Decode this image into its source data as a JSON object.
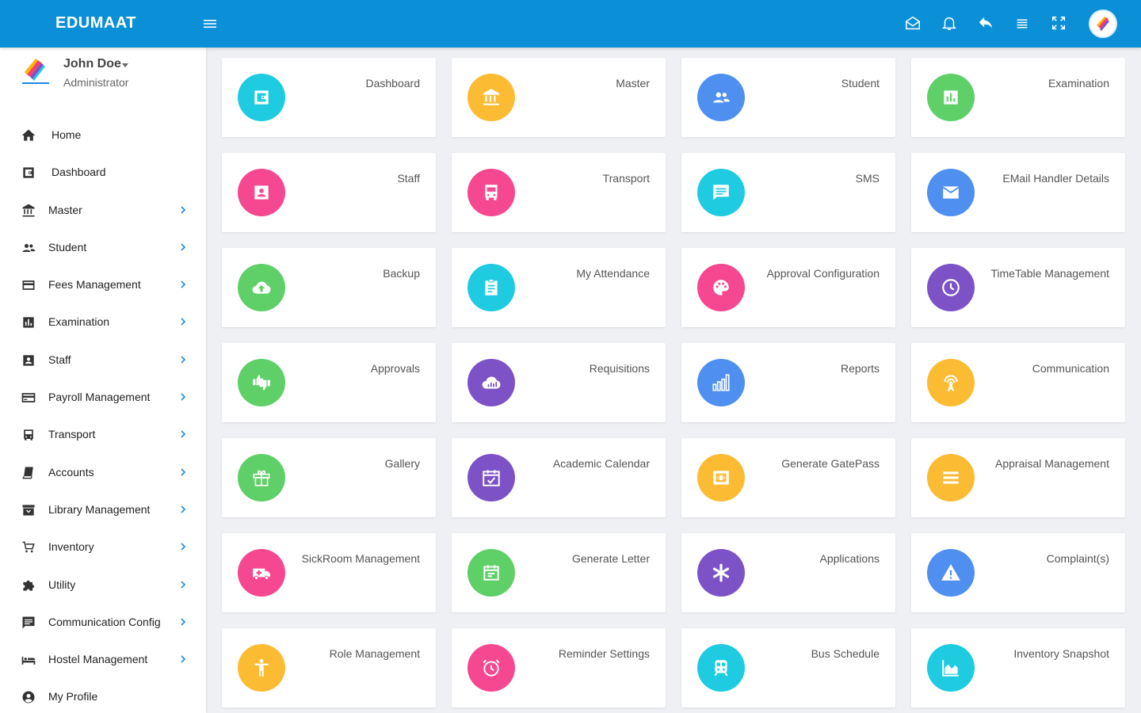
{
  "header": {
    "brand": "EDUMAAT",
    "bar_color": "#0b8fd6",
    "icons": [
      "mail-open-icon",
      "bell-icon",
      "reply-icon",
      "list-icon",
      "fullscreen-icon"
    ]
  },
  "user": {
    "name": "John Doe",
    "role": "Administrator"
  },
  "sidebar": {
    "items": [
      {
        "label": "Home",
        "icon": "home-icon",
        "has_submenu": false
      },
      {
        "label": "Dashboard",
        "icon": "dashboard-icon",
        "has_submenu": false
      },
      {
        "label": "Master",
        "icon": "bank-icon",
        "has_submenu": true
      },
      {
        "label": "Student",
        "icon": "people-icon",
        "has_submenu": true
      },
      {
        "label": "Fees Management",
        "icon": "credit-card-icon",
        "has_submenu": true
      },
      {
        "label": "Examination",
        "icon": "chart-icon",
        "has_submenu": true
      },
      {
        "label": "Staff",
        "icon": "contact-icon",
        "has_submenu": true
      },
      {
        "label": "Payroll Management",
        "icon": "payment-icon",
        "has_submenu": true
      },
      {
        "label": "Transport",
        "icon": "bus-icon",
        "has_submenu": true
      },
      {
        "label": "Accounts",
        "icon": "book-icon",
        "has_submenu": true
      },
      {
        "label": "Library Management",
        "icon": "archive-icon",
        "has_submenu": true
      },
      {
        "label": "Inventory",
        "icon": "cart-icon",
        "has_submenu": true
      },
      {
        "label": "Utility",
        "icon": "puzzle-icon",
        "has_submenu": true
      },
      {
        "label": "Communication Config",
        "icon": "message-icon",
        "has_submenu": true
      },
      {
        "label": "Hostel Management",
        "icon": "bed-icon",
        "has_submenu": true
      },
      {
        "label": "My Profile",
        "icon": "account-circle-icon",
        "has_submenu": false
      }
    ]
  },
  "modules": [
    {
      "label": "Dashboard",
      "color": "#1ecbe1",
      "icon": "dashboard-icon"
    },
    {
      "label": "Master",
      "color": "#fbbc34",
      "icon": "bank-icon"
    },
    {
      "label": "Student",
      "color": "#4f8ff0",
      "icon": "people-icon"
    },
    {
      "label": "Examination",
      "color": "#5fcf68",
      "icon": "chart-icon"
    },
    {
      "label": "Staff",
      "color": "#f54890",
      "icon": "contact-icon"
    },
    {
      "label": "Transport",
      "color": "#f54890",
      "icon": "bus-icon"
    },
    {
      "label": "SMS",
      "color": "#1ecbe1",
      "icon": "message-icon"
    },
    {
      "label": "EMail Handler Details",
      "color": "#4f8ff0",
      "icon": "mail-icon"
    },
    {
      "label": "Backup",
      "color": "#5fcf68",
      "icon": "cloud-upload-icon"
    },
    {
      "label": "My Attendance",
      "color": "#1ecbe1",
      "icon": "clipboard-icon"
    },
    {
      "label": "Approval Configuration",
      "color": "#f54890",
      "icon": "palette-icon"
    },
    {
      "label": "TimeTable Management",
      "color": "#7d52c7",
      "icon": "clock-icon"
    },
    {
      "label": "Approvals",
      "color": "#5fcf68",
      "icon": "thumbs-icon"
    },
    {
      "label": "Requisitions",
      "color": "#7d52c7",
      "icon": "cloud-chart-icon"
    },
    {
      "label": "Reports",
      "color": "#4f8ff0",
      "icon": "bar-chart-icon"
    },
    {
      "label": "Communication",
      "color": "#fbbc34",
      "icon": "antenna-icon"
    },
    {
      "label": "Gallery",
      "color": "#5fcf68",
      "icon": "gift-icon"
    },
    {
      "label": "Academic Calendar",
      "color": "#7d52c7",
      "icon": "calendar-check-icon"
    },
    {
      "label": "Generate GatePass",
      "color": "#fbbc34",
      "icon": "pass-icon"
    },
    {
      "label": "Appraisal Management",
      "color": "#fbbc34",
      "icon": "menu-lines-icon"
    },
    {
      "label": "SickRoom Management",
      "color": "#f54890",
      "icon": "ambulance-icon"
    },
    {
      "label": "Generate Letter",
      "color": "#5fcf68",
      "icon": "calendar-icon"
    },
    {
      "label": "Applications",
      "color": "#7d52c7",
      "icon": "asterisk-icon"
    },
    {
      "label": "Complaint(s)",
      "color": "#4f8ff0",
      "icon": "warning-icon"
    },
    {
      "label": "Role Management",
      "color": "#fbbc34",
      "icon": "person-icon"
    },
    {
      "label": "Reminder Settings",
      "color": "#f54890",
      "icon": "alarm-icon"
    },
    {
      "label": "Bus Schedule",
      "color": "#1ecbe1",
      "icon": "train-icon"
    },
    {
      "label": "Inventory Snapshot",
      "color": "#1ecbe1",
      "icon": "area-chart-icon"
    }
  ]
}
